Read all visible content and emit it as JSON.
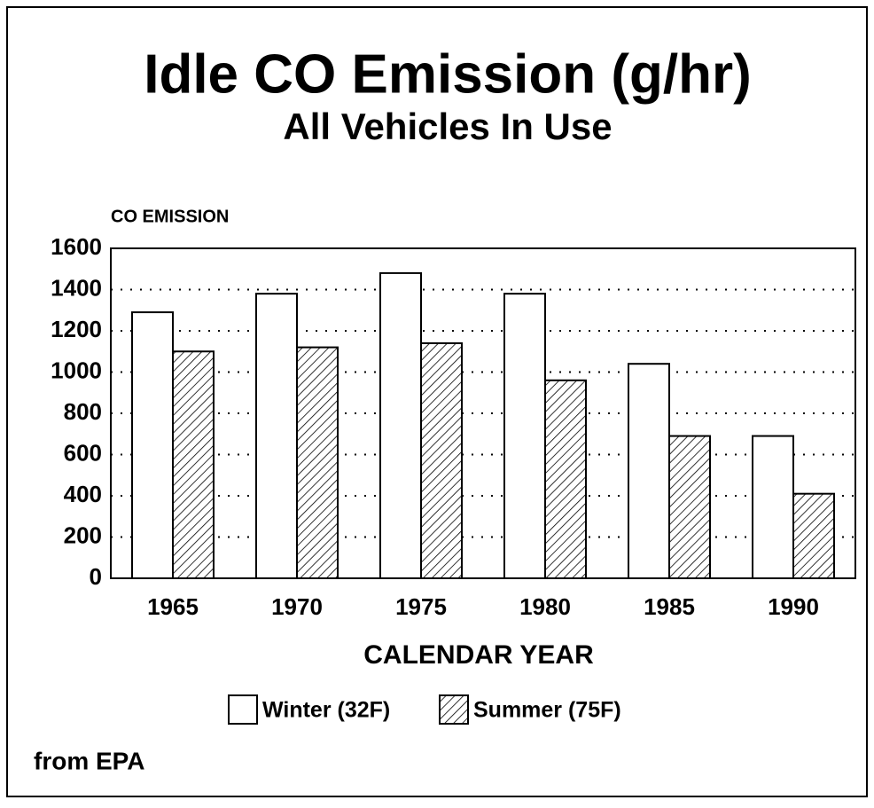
{
  "chart_data": {
    "type": "bar",
    "title": "Idle CO Emission (g/hr)",
    "subtitle": "All Vehicles In Use",
    "y_label": "CO EMISSION",
    "x_label": "CALENDAR YEAR",
    "source": "from EPA",
    "categories": [
      "1965",
      "1970",
      "1975",
      "1980",
      "1985",
      "1990"
    ],
    "series": [
      {
        "name": "Winter (32F)",
        "color": "#ffffff",
        "fill": "solid",
        "values": [
          1290,
          1380,
          1480,
          1380,
          1040,
          690
        ]
      },
      {
        "name": "Summer (75F)",
        "color": "#ffffff",
        "fill": "hatch",
        "values": [
          1100,
          1120,
          1140,
          960,
          690,
          410
        ]
      }
    ],
    "ylim": [
      0,
      1600
    ],
    "yticks": [
      0,
      200,
      400,
      600,
      800,
      1000,
      1200,
      1400,
      1600
    ],
    "grid": true,
    "legend": "bottom"
  }
}
